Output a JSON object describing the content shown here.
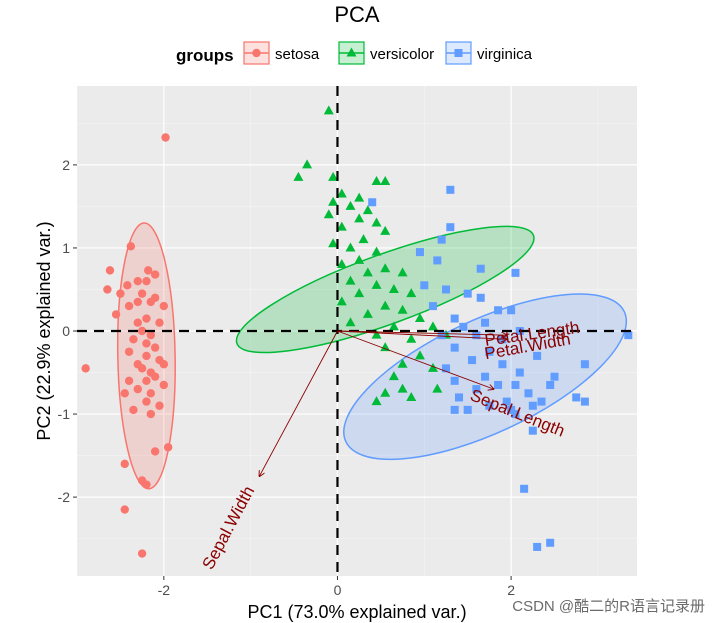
{
  "chart_data": {
    "type": "scatter",
    "title": "PCA",
    "xlabel": "PC1 (73.0% explained var.)",
    "ylabel": "PC2 (22.9% explained var.)",
    "xlim": [
      -3.0,
      3.45
    ],
    "ylim": [
      -2.95,
      2.95
    ],
    "x_ticks": [
      -2,
      0,
      2
    ],
    "y_ticks": [
      -2,
      -1,
      0,
      1,
      2
    ],
    "grid": true,
    "legend": {
      "title": "groups",
      "placement": "top"
    },
    "reference_lines": {
      "x": 0,
      "y": 0,
      "style": "dashed"
    },
    "series": [
      {
        "name": "setosa",
        "color": "#F8766D",
        "marker": "circle",
        "ellipse": {
          "cx": -2.2,
          "cy": -0.3,
          "rx": 0.33,
          "ry": 1.6,
          "angle_deg": 91
        },
        "points": [
          [
            -1.98,
            2.33
          ],
          [
            -2.38,
            1.02
          ],
          [
            -2.62,
            0.73
          ],
          [
            -2.42,
            0.55
          ],
          [
            -2.18,
            0.73
          ],
          [
            -2.1,
            0.68
          ],
          [
            -2.3,
            0.6
          ],
          [
            -2.2,
            0.6
          ],
          [
            -2.65,
            0.5
          ],
          [
            -2.5,
            0.45
          ],
          [
            -2.25,
            0.45
          ],
          [
            -2.1,
            0.4
          ],
          [
            -2.3,
            0.35
          ],
          [
            -2.15,
            0.35
          ],
          [
            -2.4,
            0.3
          ],
          [
            -2.0,
            0.3
          ],
          [
            -2.55,
            0.2
          ],
          [
            -2.2,
            0.15
          ],
          [
            -2.3,
            0.1
          ],
          [
            -2.05,
            0.1
          ],
          [
            -2.25,
            0.0
          ],
          [
            -2.15,
            -0.05
          ],
          [
            -2.35,
            -0.1
          ],
          [
            -2.2,
            -0.15
          ],
          [
            -2.1,
            -0.2
          ],
          [
            -2.4,
            -0.25
          ],
          [
            -2.2,
            -0.3
          ],
          [
            -2.05,
            -0.35
          ],
          [
            -2.3,
            -0.4
          ],
          [
            -2.0,
            -0.4
          ],
          [
            -2.9,
            -0.45
          ],
          [
            -2.25,
            -0.45
          ],
          [
            -2.15,
            -0.5
          ],
          [
            -2.1,
            -0.55
          ],
          [
            -2.4,
            -0.6
          ],
          [
            -2.2,
            -0.6
          ],
          [
            -2.0,
            -0.65
          ],
          [
            -2.3,
            -0.7
          ],
          [
            -2.15,
            -0.75
          ],
          [
            -2.45,
            -0.75
          ],
          [
            -2.2,
            -0.85
          ],
          [
            -2.05,
            -0.9
          ],
          [
            -2.35,
            -0.95
          ],
          [
            -2.15,
            -1.0
          ],
          [
            -1.95,
            -1.4
          ],
          [
            -2.1,
            -1.45
          ],
          [
            -2.25,
            -1.8
          ],
          [
            -2.45,
            -1.6
          ],
          [
            -2.2,
            -1.85
          ],
          [
            -2.45,
            -2.15
          ],
          [
            -2.25,
            -2.68
          ]
        ]
      },
      {
        "name": "versicolor",
        "color": "#00BA38",
        "marker": "triangle",
        "ellipse": {
          "cx": 0.55,
          "cy": 0.5,
          "rx": 0.4,
          "ry": 1.9,
          "angle_deg": 20
        },
        "points": [
          [
            -0.1,
            2.65
          ],
          [
            -0.35,
            2.0
          ],
          [
            -0.45,
            1.85
          ],
          [
            -0.05,
            1.85
          ],
          [
            0.05,
            1.65
          ],
          [
            0.25,
            1.6
          ],
          [
            0.45,
            1.8
          ],
          [
            0.55,
            1.8
          ],
          [
            -0.05,
            1.55
          ],
          [
            0.15,
            1.5
          ],
          [
            0.35,
            1.45
          ],
          [
            -0.1,
            1.4
          ],
          [
            0.25,
            1.35
          ],
          [
            0.45,
            1.3
          ],
          [
            0.05,
            1.25
          ],
          [
            0.55,
            1.2
          ],
          [
            0.3,
            1.1
          ],
          [
            -0.05,
            1.05
          ],
          [
            0.15,
            1.0
          ],
          [
            0.45,
            0.95
          ],
          [
            0.25,
            0.85
          ],
          [
            0.05,
            0.8
          ],
          [
            0.55,
            0.75
          ],
          [
            0.35,
            0.7
          ],
          [
            0.75,
            0.7
          ],
          [
            0.15,
            0.6
          ],
          [
            0.45,
            0.55
          ],
          [
            0.65,
            0.5
          ],
          [
            0.25,
            0.45
          ],
          [
            0.85,
            0.45
          ],
          [
            0.05,
            0.35
          ],
          [
            0.55,
            0.3
          ],
          [
            0.75,
            0.25
          ],
          [
            0.35,
            0.2
          ],
          [
            0.95,
            0.15
          ],
          [
            0.15,
            0.1
          ],
          [
            0.65,
            0.05
          ],
          [
            1.1,
            0.05
          ],
          [
            0.45,
            -0.05
          ],
          [
            0.85,
            -0.1
          ],
          [
            1.25,
            -0.05
          ],
          [
            0.55,
            -0.2
          ],
          [
            0.95,
            -0.3
          ],
          [
            0.75,
            -0.4
          ],
          [
            1.1,
            -0.45
          ],
          [
            0.65,
            -0.55
          ],
          [
            0.75,
            -0.7
          ],
          [
            0.55,
            -0.75
          ],
          [
            1.15,
            -0.7
          ],
          [
            0.85,
            -0.8
          ],
          [
            0.45,
            -0.85
          ]
        ]
      },
      {
        "name": "virginica",
        "color": "#619CFF",
        "marker": "square",
        "ellipse": {
          "cx": 1.7,
          "cy": -0.55,
          "rx": 0.65,
          "ry": 1.85,
          "angle_deg": 25
        },
        "points": [
          [
            0.4,
            1.55
          ],
          [
            1.3,
            1.7
          ],
          [
            1.3,
            1.25
          ],
          [
            1.2,
            1.1
          ],
          [
            0.95,
            0.95
          ],
          [
            1.15,
            0.85
          ],
          [
            1.65,
            0.75
          ],
          [
            2.05,
            0.7
          ],
          [
            1.0,
            0.55
          ],
          [
            1.25,
            0.5
          ],
          [
            1.5,
            0.45
          ],
          [
            1.65,
            0.4
          ],
          [
            1.1,
            0.3
          ],
          [
            1.85,
            0.25
          ],
          [
            2.0,
            0.25
          ],
          [
            1.35,
            0.15
          ],
          [
            1.7,
            0.1
          ],
          [
            1.45,
            0.05
          ],
          [
            2.1,
            0.0
          ],
          [
            1.2,
            -0.05
          ],
          [
            1.6,
            -0.05
          ],
          [
            1.9,
            -0.1
          ],
          [
            1.35,
            -0.2
          ],
          [
            1.75,
            -0.25
          ],
          [
            2.3,
            -0.3
          ],
          [
            1.55,
            -0.35
          ],
          [
            1.9,
            -0.4
          ],
          [
            1.25,
            -0.45
          ],
          [
            2.1,
            -0.5
          ],
          [
            1.7,
            -0.55
          ],
          [
            1.35,
            -0.6
          ],
          [
            2.05,
            -0.65
          ],
          [
            2.5,
            -0.55
          ],
          [
            1.85,
            -0.65
          ],
          [
            2.45,
            -0.65
          ],
          [
            1.6,
            -0.7
          ],
          [
            2.2,
            -0.75
          ],
          [
            1.4,
            -0.8
          ],
          [
            1.95,
            -0.85
          ],
          [
            2.35,
            -0.85
          ],
          [
            1.75,
            -0.9
          ],
          [
            1.35,
            -0.95
          ],
          [
            2.75,
            -0.8
          ],
          [
            2.85,
            -0.85
          ],
          [
            2.0,
            -0.95
          ],
          [
            2.25,
            -0.9
          ],
          [
            2.05,
            -1.0
          ],
          [
            2.25,
            -1.2
          ],
          [
            2.15,
            -1.9
          ],
          [
            2.45,
            -2.55
          ],
          [
            2.3,
            -2.6
          ],
          [
            3.35,
            -0.05
          ],
          [
            2.85,
            -0.4
          ],
          [
            1.5,
            -0.95
          ]
        ]
      }
    ],
    "loadings": [
      {
        "name": "Petal.Length",
        "x": 1.95,
        "y": -0.05,
        "label_x": 2.25,
        "label_y": -0.1,
        "label_angle": -8
      },
      {
        "name": "Petal.Width",
        "x": 1.95,
        "y": -0.1,
        "label_x": 2.2,
        "label_y": -0.25,
        "label_angle": -10
      },
      {
        "name": "Sepal.Length",
        "x": 1.8,
        "y": -0.7,
        "label_x": 2.05,
        "label_y": -1.05,
        "label_angle": 22
      },
      {
        "name": "Sepal.Width",
        "x": -0.9,
        "y": -1.75,
        "label_x": -1.2,
        "label_y": -2.4,
        "label_angle": -62
      }
    ]
  },
  "watermark": "CSDN @酷二的R语言记录册"
}
